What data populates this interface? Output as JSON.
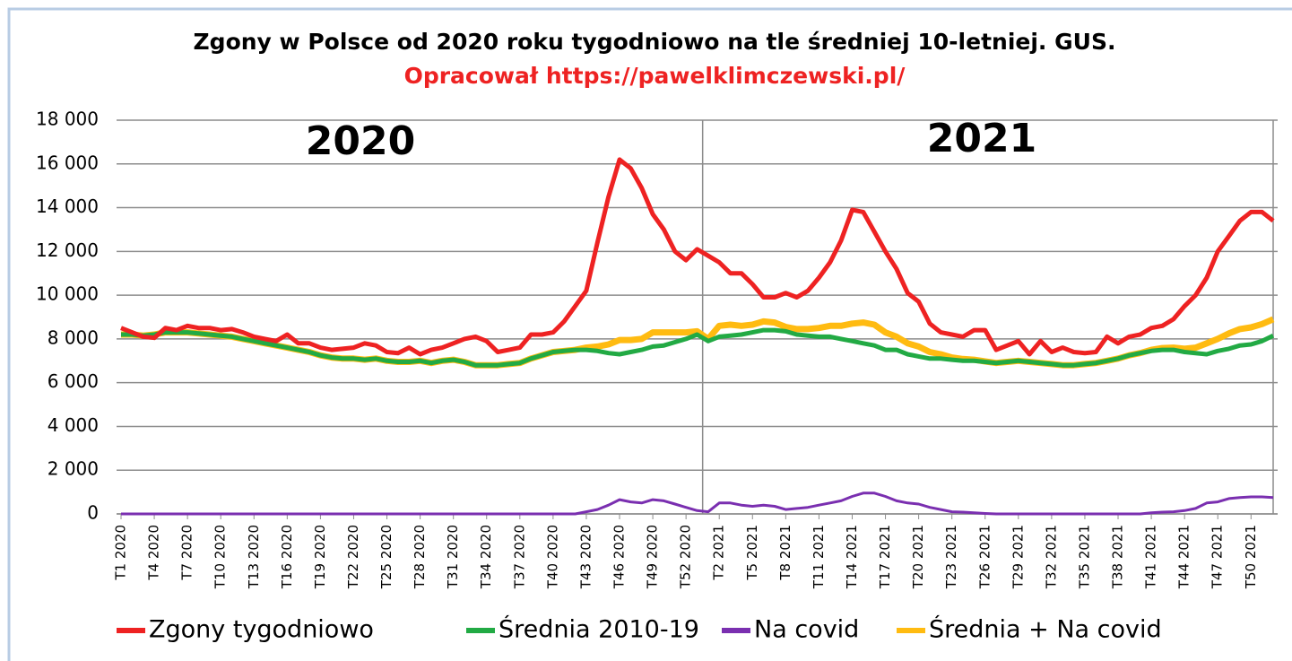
{
  "chart_data": {
    "type": "line",
    "title": "Zgony w Polsce od 2020 roku tygodniowo na tle średniej 10-letniej. GUS.",
    "subtitle": "Opracował https://pawelklimczewski.pl/",
    "annotations": [
      "2020",
      "2021"
    ],
    "categories": [
      "T1 2020",
      null,
      null,
      "T4 2020",
      null,
      null,
      "T7 2020",
      null,
      null,
      "T10 2020",
      null,
      null,
      "T13 2020",
      null,
      null,
      "T16 2020",
      null,
      null,
      "T19 2020",
      null,
      null,
      "T22 2020",
      null,
      null,
      "T25 2020",
      null,
      null,
      "T28 2020",
      null,
      null,
      "T31 2020",
      null,
      null,
      "T34 2020",
      null,
      null,
      "T37 2020",
      null,
      null,
      "T40 2020",
      null,
      null,
      "T43 2020",
      null,
      null,
      "T46 2020",
      null,
      null,
      "T49 2020",
      null,
      null,
      "T52 2020",
      null,
      null,
      "T2 2021",
      null,
      null,
      "T5 2021",
      null,
      null,
      "T8 2021",
      null,
      null,
      "T11 2021",
      null,
      null,
      "T14 2021",
      null,
      null,
      "T17 2021",
      null,
      null,
      "T20 2021",
      null,
      null,
      "T23 2021",
      null,
      null,
      "T26 2021",
      null,
      null,
      "T29 2021",
      null,
      null,
      "T32 2021",
      null,
      null,
      "T35 2021",
      null,
      null,
      "T38 2021",
      null,
      null,
      "T41 2021",
      null,
      null,
      "T44 2021",
      null,
      null,
      "T47 2021",
      null,
      null,
      "T50 2021",
      null,
      null
    ],
    "series": [
      {
        "name": "Zgony tygodniowo",
        "color": "#ee2222",
        "values": [
          8500,
          8300,
          8100,
          8050,
          8500,
          8400,
          8600,
          8500,
          8500,
          8400,
          8450,
          8300,
          8100,
          8000,
          7900,
          8200,
          7800,
          7800,
          7600,
          7500,
          7550,
          7600,
          7800,
          7700,
          7400,
          7350,
          7600,
          7300,
          7500,
          7600,
          7800,
          8000,
          8100,
          7900,
          7400,
          7500,
          7600,
          8200,
          8200,
          8300,
          8800,
          9500,
          10200,
          12400,
          14500,
          16200,
          15800,
          14900,
          13700,
          13000,
          12000,
          11600,
          12100,
          11800,
          11500,
          11000,
          11000,
          10500,
          9900,
          9900,
          10100,
          9900,
          10200,
          10800,
          11500,
          12500,
          13900,
          13800,
          12900,
          12000,
          11200,
          10100,
          9700,
          8700,
          8300,
          8200,
          8100,
          8400,
          8400,
          7500,
          7700,
          7900,
          7300,
          7900,
          7400,
          7600,
          7400,
          7350,
          7400,
          8100,
          7800,
          8100,
          8200,
          8500,
          8600,
          8900,
          9500,
          10000,
          10800,
          12000,
          12700,
          13400,
          13800,
          13800,
          13400
        ]
      },
      {
        "name": "Średnia 2010-19",
        "color": "#22aa44",
        "values": [
          8200,
          8200,
          8150,
          8200,
          8300,
          8300,
          8300,
          8250,
          8200,
          8150,
          8100,
          8000,
          7900,
          7800,
          7700,
          7600,
          7500,
          7400,
          7250,
          7150,
          7100,
          7100,
          7050,
          7100,
          7000,
          6950,
          6950,
          7000,
          6900,
          7000,
          7050,
          6950,
          6800,
          6800,
          6800,
          6850,
          6900,
          7100,
          7250,
          7400,
          7450,
          7500,
          7500,
          7450,
          7350,
          7300,
          7400,
          7500,
          7650,
          7700,
          7850,
          8000,
          8200,
          7900,
          8100,
          8150,
          8200,
          8300,
          8400,
          8400,
          8350,
          8200,
          8150,
          8100,
          8100,
          8000,
          7900,
          7800,
          7700,
          7500,
          7500,
          7300,
          7200,
          7100,
          7100,
          7050,
          7000,
          7000,
          6950,
          6900,
          6950,
          7000,
          6950,
          6900,
          6850,
          6800,
          6800,
          6850,
          6900,
          7000,
          7100,
          7250,
          7350,
          7450,
          7500,
          7500,
          7400,
          7350,
          7300,
          7450,
          7550,
          7700,
          7750,
          7900,
          8150
        ]
      },
      {
        "name": "Na covid",
        "color": "#7a2fb0",
        "values": [
          0,
          0,
          0,
          0,
          0,
          0,
          0,
          0,
          0,
          0,
          0,
          0,
          0,
          0,
          0,
          0,
          0,
          0,
          0,
          0,
          0,
          0,
          0,
          0,
          0,
          0,
          0,
          0,
          0,
          0,
          0,
          0,
          0,
          0,
          0,
          0,
          0,
          0,
          0,
          0,
          0,
          0,
          100,
          200,
          400,
          650,
          550,
          500,
          650,
          600,
          450,
          300,
          150,
          100,
          500,
          500,
          400,
          350,
          400,
          350,
          200,
          250,
          300,
          400,
          500,
          600,
          800,
          950,
          950,
          800,
          600,
          500,
          450,
          300,
          200,
          100,
          80,
          50,
          20,
          0,
          0,
          0,
          0,
          0,
          0,
          0,
          0,
          0,
          0,
          0,
          0,
          0,
          0,
          50,
          80,
          100,
          150,
          250,
          500,
          550,
          700,
          750,
          780,
          780,
          750
        ]
      },
      {
        "name": "Średnia + Na covid",
        "color": "#ffbb11",
        "values": [
          8200,
          8200,
          8150,
          8200,
          8300,
          8300,
          8300,
          8250,
          8200,
          8150,
          8100,
          8000,
          7900,
          7800,
          7700,
          7600,
          7500,
          7400,
          7250,
          7150,
          7100,
          7100,
          7050,
          7100,
          7000,
          6950,
          6950,
          7000,
          6900,
          7000,
          7050,
          6950,
          6800,
          6800,
          6800,
          6850,
          6900,
          7100,
          7250,
          7400,
          7450,
          7500,
          7600,
          7650,
          7750,
          7950,
          7950,
          8000,
          8300,
          8300,
          8300,
          8300,
          8350,
          8000,
          8600,
          8650,
          8600,
          8650,
          8800,
          8750,
          8550,
          8450,
          8450,
          8500,
          8600,
          8600,
          8700,
          8750,
          8650,
          8300,
          8100,
          7800,
          7650,
          7400,
          7300,
          7150,
          7080,
          7050,
          6970,
          6900,
          6950,
          7000,
          6950,
          6900,
          6850,
          6800,
          6800,
          6850,
          6900,
          7000,
          7100,
          7250,
          7350,
          7500,
          7580,
          7600,
          7550,
          7600,
          7800,
          8000,
          8250,
          8450,
          8530,
          8680,
          8900
        ]
      }
    ],
    "ylim": [
      0,
      18000
    ],
    "yticks": [
      0,
      {
        "value": 2000,
        "label": "2 000"
      },
      {
        "value": 4000,
        "label": "4 000"
      },
      {
        "value": 6000,
        "label": "6 000"
      },
      {
        "value": 8000,
        "label": "8 000"
      },
      {
        "value": 10000,
        "label": "10 000"
      },
      {
        "value": 12000,
        "label": "12 000"
      },
      {
        "value": 14000,
        "label": "14 000"
      },
      {
        "value": 16000,
        "label": "16 000"
      },
      {
        "value": 18000,
        "label": "18 000"
      }
    ],
    "grid": true,
    "legend": "bottom"
  }
}
